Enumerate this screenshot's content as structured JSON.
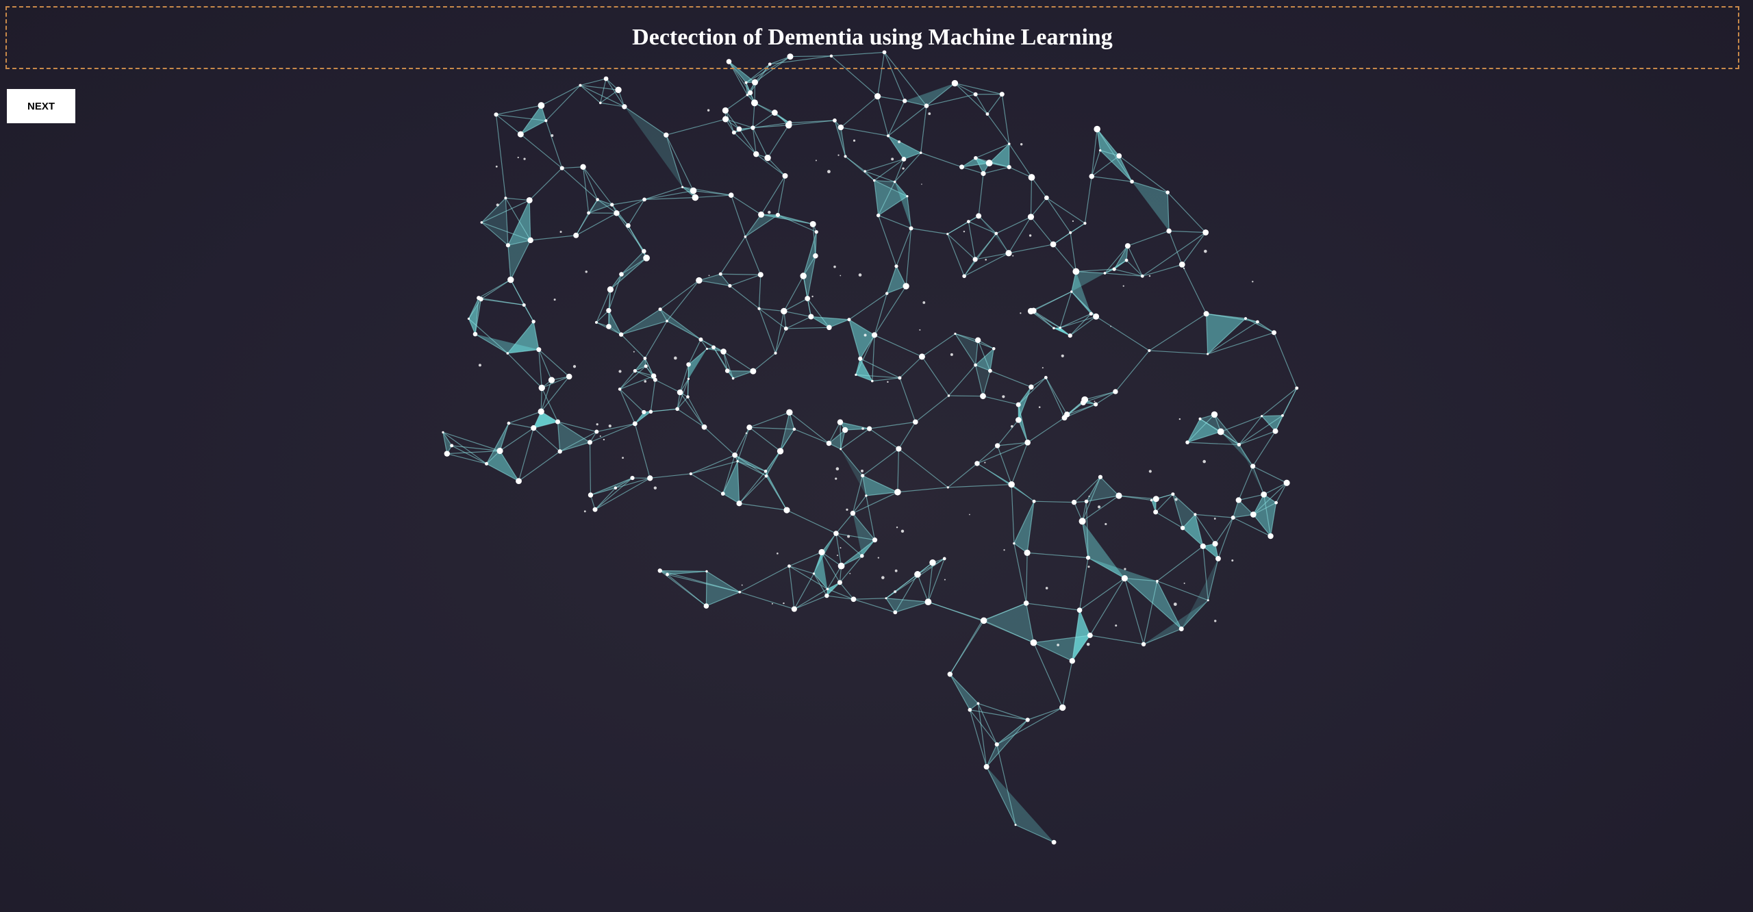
{
  "header": {
    "title": "Dectection of Dementia using Machine Learning"
  },
  "navigation": {
    "next_label": "NEXT"
  },
  "colors": {
    "background": "#252230",
    "header_border": "#c98a4a",
    "network_fill": "#6fe0e0",
    "network_line": "#8ee6e6",
    "node": "#ffffff"
  },
  "illustration": {
    "icon": "brain-network-icon"
  }
}
